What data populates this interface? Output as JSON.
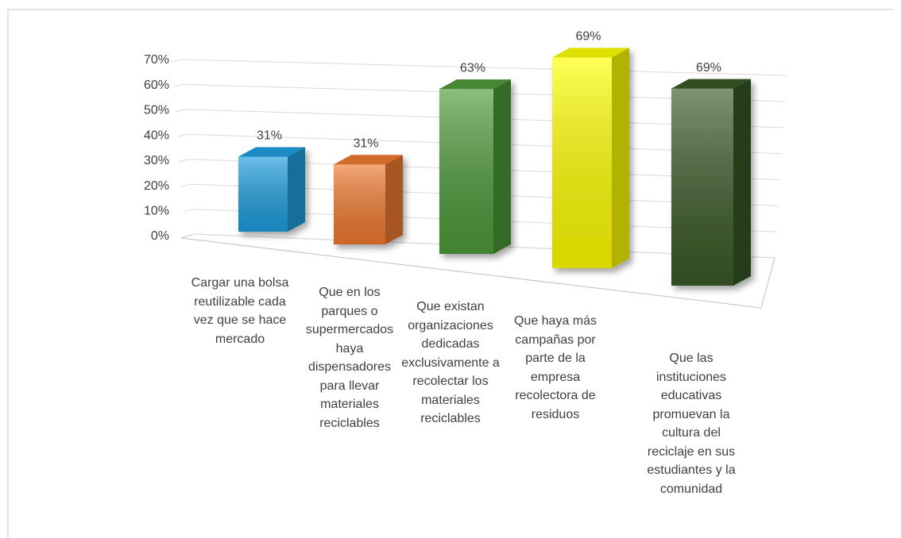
{
  "chart_data": {
    "type": "bar3d",
    "categories": [
      "Cargar una bolsa reutilizable cada vez que se hace mercado",
      "Que en los parques o supermercados haya dispensadores para llevar materiales reciclables",
      "Que existan organizaciones dedicadas exclusivamente a recolectar los materiales reciclables",
      "Que haya más campañas por parte de la empresa recolectora de residuos",
      "Que las instituciones educativas promuevan la cultura del reciclaje en sus estudiantes y la comunidad"
    ],
    "values": [
      31,
      31,
      63,
      69,
      69
    ],
    "value_labels": [
      "31%",
      "31%",
      "63%",
      "69%",
      "69%"
    ],
    "colors": [
      "#1e9ede",
      "#f07a30",
      "#4e9a3a",
      "#ffff00",
      "#3a5a28"
    ],
    "ylim": [
      0,
      70
    ],
    "yticks": [
      {
        "value": 0,
        "label": "0%"
      },
      {
        "value": 10,
        "label": "10%"
      },
      {
        "value": 20,
        "label": "20%"
      },
      {
        "value": 30,
        "label": "30%"
      },
      {
        "value": 40,
        "label": "40%"
      },
      {
        "value": 50,
        "label": "50%"
      },
      {
        "value": 60,
        "label": "60%"
      },
      {
        "value": 70,
        "label": "70%"
      }
    ],
    "grid": true
  }
}
